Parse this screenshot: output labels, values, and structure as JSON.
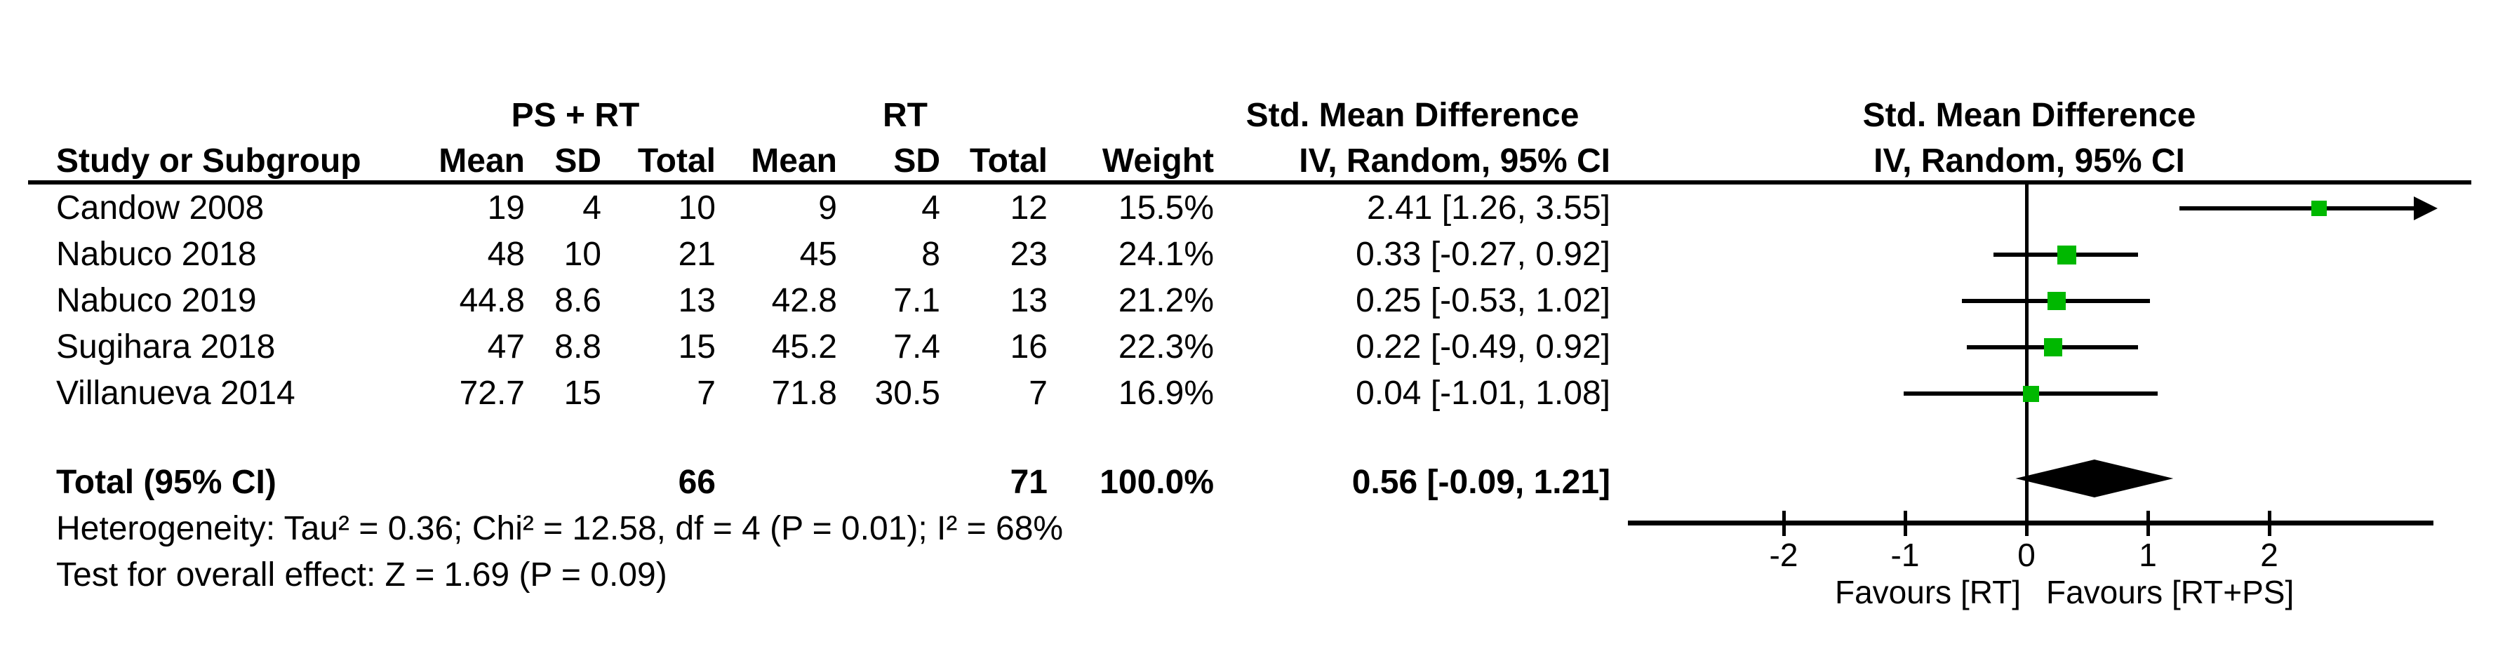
{
  "header": {
    "group1": "PS + RT",
    "group2": "RT",
    "smd_col": {
      "line1": "Std. Mean Difference",
      "line2": "IV, Random, 95% CI"
    },
    "plot_col": {
      "line1": "Std. Mean Difference",
      "line2": "IV, Random, 95% CI"
    },
    "columns": {
      "study": "Study or Subgroup",
      "mean1": "Mean",
      "sd1": "SD",
      "total1": "Total",
      "mean2": "Mean",
      "sd2": "SD",
      "total2": "Total",
      "weight": "Weight"
    }
  },
  "rows": [
    {
      "study": "Candow 2008",
      "mean1": "19",
      "sd1": "4",
      "total1": "10",
      "mean2": "9",
      "sd2": "4",
      "total2": "12",
      "weight": "15.5%",
      "ci": "2.41 [1.26, 3.55]"
    },
    {
      "study": "Nabuco 2018",
      "mean1": "48",
      "sd1": "10",
      "total1": "21",
      "mean2": "45",
      "sd2": "8",
      "total2": "23",
      "weight": "24.1%",
      "ci": "0.33 [-0.27, 0.92]"
    },
    {
      "study": "Nabuco 2019",
      "mean1": "44.8",
      "sd1": "8.6",
      "total1": "13",
      "mean2": "42.8",
      "sd2": "7.1",
      "total2": "13",
      "weight": "21.2%",
      "ci": "0.25 [-0.53, 1.02]"
    },
    {
      "study": "Sugihara 2018",
      "mean1": "47",
      "sd1": "8.8",
      "total1": "15",
      "mean2": "45.2",
      "sd2": "7.4",
      "total2": "16",
      "weight": "22.3%",
      "ci": "0.22 [-0.49, 0.92]"
    },
    {
      "study": "Villanueva 2014",
      "mean1": "72.7",
      "sd1": "15",
      "total1": "7",
      "mean2": "71.8",
      "sd2": "30.5",
      "total2": "7",
      "weight": "16.9%",
      "ci": "0.04 [-1.01, 1.08]"
    }
  ],
  "footer": {
    "total_label": "Total (95% CI)",
    "total1": "66",
    "total2": "71",
    "weight": "100.0%",
    "ci": "0.56 [-0.09, 1.21]",
    "heterogeneity": "Heterogeneity: Tau² = 0.36; Chi² = 12.58, df = 4 (P = 0.01); I² = 68%",
    "overall_effect": "Test for overall effect: Z = 1.69 (P = 0.09)"
  },
  "chart_data": {
    "type": "forest",
    "title": "Std. Mean Difference  IV, Random, 95% CI",
    "x_axis": {
      "tick_values": [
        -2,
        -1,
        0,
        1,
        2
      ],
      "tick_labels": [
        "-2",
        "-1",
        "0",
        "1",
        "2"
      ],
      "visible_range": [
        -3.3,
        3.35
      ]
    },
    "favours": {
      "left": "Favours [RT]",
      "right": "Favours [RT+PS]"
    },
    "studies": [
      {
        "name": "Candow 2008",
        "estimate": 2.41,
        "ci_lower": 1.26,
        "ci_upper": 3.55,
        "weight_pct": 15.5
      },
      {
        "name": "Nabuco 2018",
        "estimate": 0.33,
        "ci_lower": -0.27,
        "ci_upper": 0.92,
        "weight_pct": 24.1
      },
      {
        "name": "Nabuco 2019",
        "estimate": 0.25,
        "ci_lower": -0.53,
        "ci_upper": 1.02,
        "weight_pct": 21.2
      },
      {
        "name": "Sugihara 2018",
        "estimate": 0.22,
        "ci_lower": -0.49,
        "ci_upper": 0.92,
        "weight_pct": 22.3
      },
      {
        "name": "Villanueva 2014",
        "estimate": 0.04,
        "ci_lower": -1.01,
        "ci_upper": 1.08,
        "weight_pct": 16.9
      }
    ],
    "overall": {
      "label": "Total (95% CI)",
      "estimate": 0.56,
      "ci_lower": -0.09,
      "ci_upper": 1.21
    },
    "marker_color": "#00b800",
    "line_color": "#000000"
  }
}
